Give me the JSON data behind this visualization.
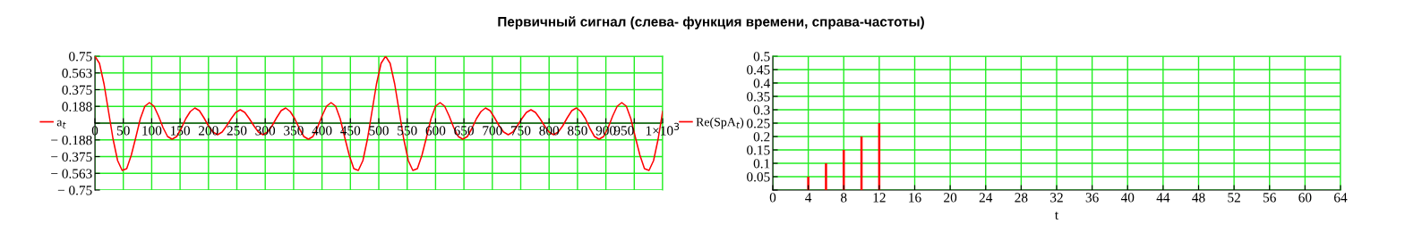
{
  "chart_data": [
    {
      "type": "line",
      "title": "Первичный сигнал (слева- функция времени, справа-частоты)",
      "x": [
        0,
        8,
        16,
        24,
        32,
        40,
        48,
        56,
        64,
        72,
        80,
        88,
        96,
        104,
        112,
        120,
        128,
        136,
        144,
        152,
        160,
        168,
        176,
        184,
        192,
        200,
        208,
        216,
        224,
        232,
        240,
        248,
        256,
        264,
        272,
        280,
        288,
        296,
        304,
        312,
        320,
        328,
        336,
        344,
        352,
        360,
        368,
        376,
        384,
        392,
        400,
        408,
        416,
        424,
        432,
        440,
        448,
        456,
        464,
        472,
        480,
        488,
        496,
        504,
        512,
        520,
        528,
        536,
        544,
        552,
        560,
        568,
        576,
        584,
        592,
        600,
        608,
        616,
        624,
        632,
        640,
        648,
        656,
        664,
        672,
        680,
        688,
        696,
        704,
        712,
        720,
        728,
        736,
        744,
        752,
        760,
        768,
        776,
        784,
        792,
        800,
        808,
        816,
        824,
        832,
        840,
        848,
        856,
        864,
        872,
        880,
        888,
        896,
        904,
        912,
        920,
        928,
        936,
        944,
        952,
        960,
        968,
        976,
        984,
        992,
        1000
      ],
      "series": [
        {
          "name": "a$_{t}$",
          "color": "#ff0000",
          "values": [
            0.75,
            0.67,
            0.44,
            0.13,
            -0.18,
            -0.42,
            -0.53,
            -0.51,
            -0.36,
            -0.16,
            0.05,
            0.19,
            0.23,
            0.19,
            0.08,
            -0.05,
            -0.15,
            -0.18,
            -0.15,
            -0.06,
            0.05,
            0.13,
            0.17,
            0.14,
            0.06,
            -0.03,
            -0.1,
            -0.13,
            -0.1,
            -0.03,
            0.05,
            0.12,
            0.15,
            0.12,
            0.05,
            -0.03,
            -0.1,
            -0.13,
            -0.1,
            -0.03,
            0.06,
            0.14,
            0.17,
            0.13,
            0.05,
            -0.06,
            -0.15,
            -0.18,
            -0.15,
            -0.05,
            0.08,
            0.19,
            0.23,
            0.19,
            0.05,
            -0.16,
            -0.36,
            -0.51,
            -0.53,
            -0.42,
            -0.18,
            0.13,
            0.44,
            0.67,
            0.75,
            0.67,
            0.44,
            0.13,
            -0.18,
            -0.42,
            -0.53,
            -0.51,
            -0.36,
            -0.16,
            0.05,
            0.19,
            0.23,
            0.19,
            0.08,
            -0.05,
            -0.15,
            -0.18,
            -0.15,
            -0.06,
            0.05,
            0.13,
            0.17,
            0.14,
            0.06,
            -0.03,
            -0.1,
            -0.13,
            -0.1,
            -0.03,
            0.05,
            0.12,
            0.15,
            0.12,
            0.05,
            -0.03,
            -0.1,
            -0.13,
            -0.1,
            -0.03,
            0.06,
            0.14,
            0.17,
            0.13,
            0.05,
            -0.06,
            -0.15,
            -0.18,
            -0.15,
            -0.05,
            0.08,
            0.19,
            0.23,
            0.19,
            0.05,
            -0.16,
            -0.36,
            -0.51,
            -0.53,
            -0.42,
            -0.18,
            0.13
          ]
        }
      ],
      "xlim": [
        0,
        1000
      ],
      "xticks": [
        0,
        50,
        100,
        150,
        200,
        250,
        300,
        350,
        400,
        450,
        500,
        550,
        600,
        650,
        700,
        750,
        800,
        850,
        900,
        950,
        {
          "value": 1000,
          "label": "1×10$^{3}$"
        }
      ],
      "ylim": [
        -0.75,
        0.75
      ],
      "yticks": [
        {
          "value": -0.75,
          "label": "− 0.75"
        },
        {
          "value": -0.563,
          "label": "− 0.563"
        },
        {
          "value": -0.375,
          "label": "− 0.375"
        },
        {
          "value": -0.188,
          "label": "− 0.188"
        },
        {
          "value": 0,
          "label": null
        },
        0.188,
        0.375,
        0.563,
        0.75
      ],
      "grid": true,
      "legend": "left",
      "marker": "none",
      "line_style": "solid"
    },
    {
      "type": "bar",
      "xlabel": "t",
      "x": [
        4,
        6,
        8,
        10,
        12
      ],
      "series": [
        {
          "name": "Re(SpA$_{t}$)",
          "color": "#ff0000",
          "values": [
            0.05,
            0.1,
            0.15,
            0.2,
            0.25
          ]
        }
      ],
      "xlim": [
        0,
        64
      ],
      "xticks": [
        0,
        4,
        8,
        12,
        16,
        20,
        24,
        28,
        32,
        36,
        40,
        44,
        48,
        52,
        56,
        60,
        64
      ],
      "ylim": [
        0,
        0.5
      ],
      "yticks": [
        {
          "value": 0,
          "label": null
        },
        0.05,
        0.1,
        0.15,
        0.2,
        0.25,
        0.3,
        0.35,
        0.4,
        0.45,
        0.5
      ],
      "grid": true,
      "legend": "left"
    }
  ]
}
